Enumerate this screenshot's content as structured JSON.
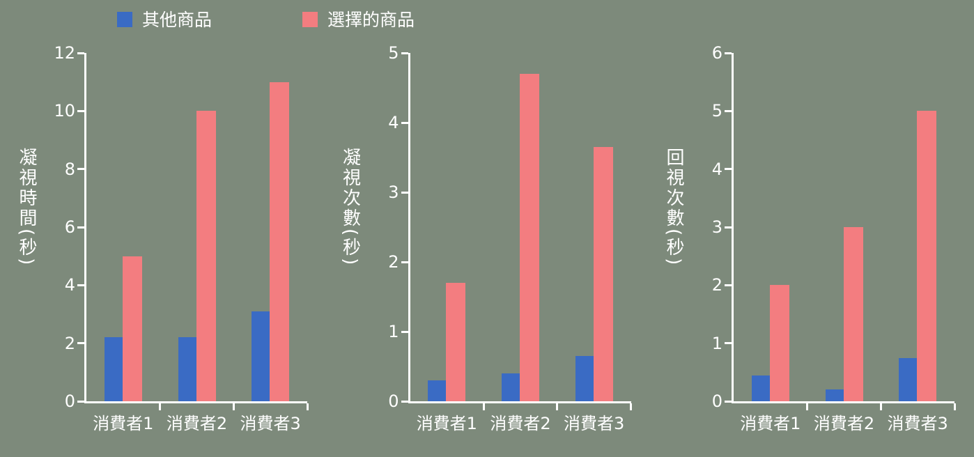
{
  "colors": {
    "background": "#7d8a7b",
    "axis": "#ffffff",
    "text": "#ffffff",
    "other_products": "#3a6bc4",
    "selected_products": "#f37d80"
  },
  "legend": {
    "items": [
      {
        "label": "其他商品",
        "color_key": "other_products"
      },
      {
        "label": "選擇的商品",
        "color_key": "selected_products"
      }
    ]
  },
  "chart_data": [
    {
      "type": "bar",
      "ylabel": "凝視時間(秒)",
      "ylim": [
        0,
        12
      ],
      "yticks": [
        0,
        2,
        4,
        6,
        8,
        10,
        12
      ],
      "categories": [
        "消費者1",
        "消費者2",
        "消費者3"
      ],
      "legend_position": "top",
      "grid": false,
      "series": [
        {
          "name": "其他商品",
          "color_key": "other_products",
          "values": [
            2.2,
            2.2,
            3.1
          ]
        },
        {
          "name": "選擇的商品",
          "color_key": "selected_products",
          "values": [
            5,
            10,
            11
          ]
        }
      ]
    },
    {
      "type": "bar",
      "ylabel": "凝視次數(秒)",
      "ylim": [
        0,
        5
      ],
      "yticks": [
        0,
        1,
        2,
        3,
        4,
        5
      ],
      "categories": [
        "消費者1",
        "消費者2",
        "消費者3"
      ],
      "legend_position": "top",
      "grid": false,
      "series": [
        {
          "name": "其他商品",
          "color_key": "other_products",
          "values": [
            0.3,
            0.4,
            0.65
          ]
        },
        {
          "name": "選擇的商品",
          "color_key": "selected_products",
          "values": [
            1.7,
            4.7,
            3.65
          ]
        }
      ]
    },
    {
      "type": "bar",
      "ylabel": "回視次數(秒)",
      "ylim": [
        0,
        6
      ],
      "yticks": [
        0,
        1,
        2,
        3,
        4,
        5,
        6
      ],
      "categories": [
        "消費者1",
        "消費者2",
        "消費者3"
      ],
      "legend_position": "top",
      "grid": false,
      "series": [
        {
          "name": "其他商品",
          "color_key": "other_products",
          "values": [
            0.45,
            0.2,
            0.75
          ]
        },
        {
          "name": "選擇的商品",
          "color_key": "selected_products",
          "values": [
            2,
            3,
            5
          ]
        }
      ]
    }
  ]
}
